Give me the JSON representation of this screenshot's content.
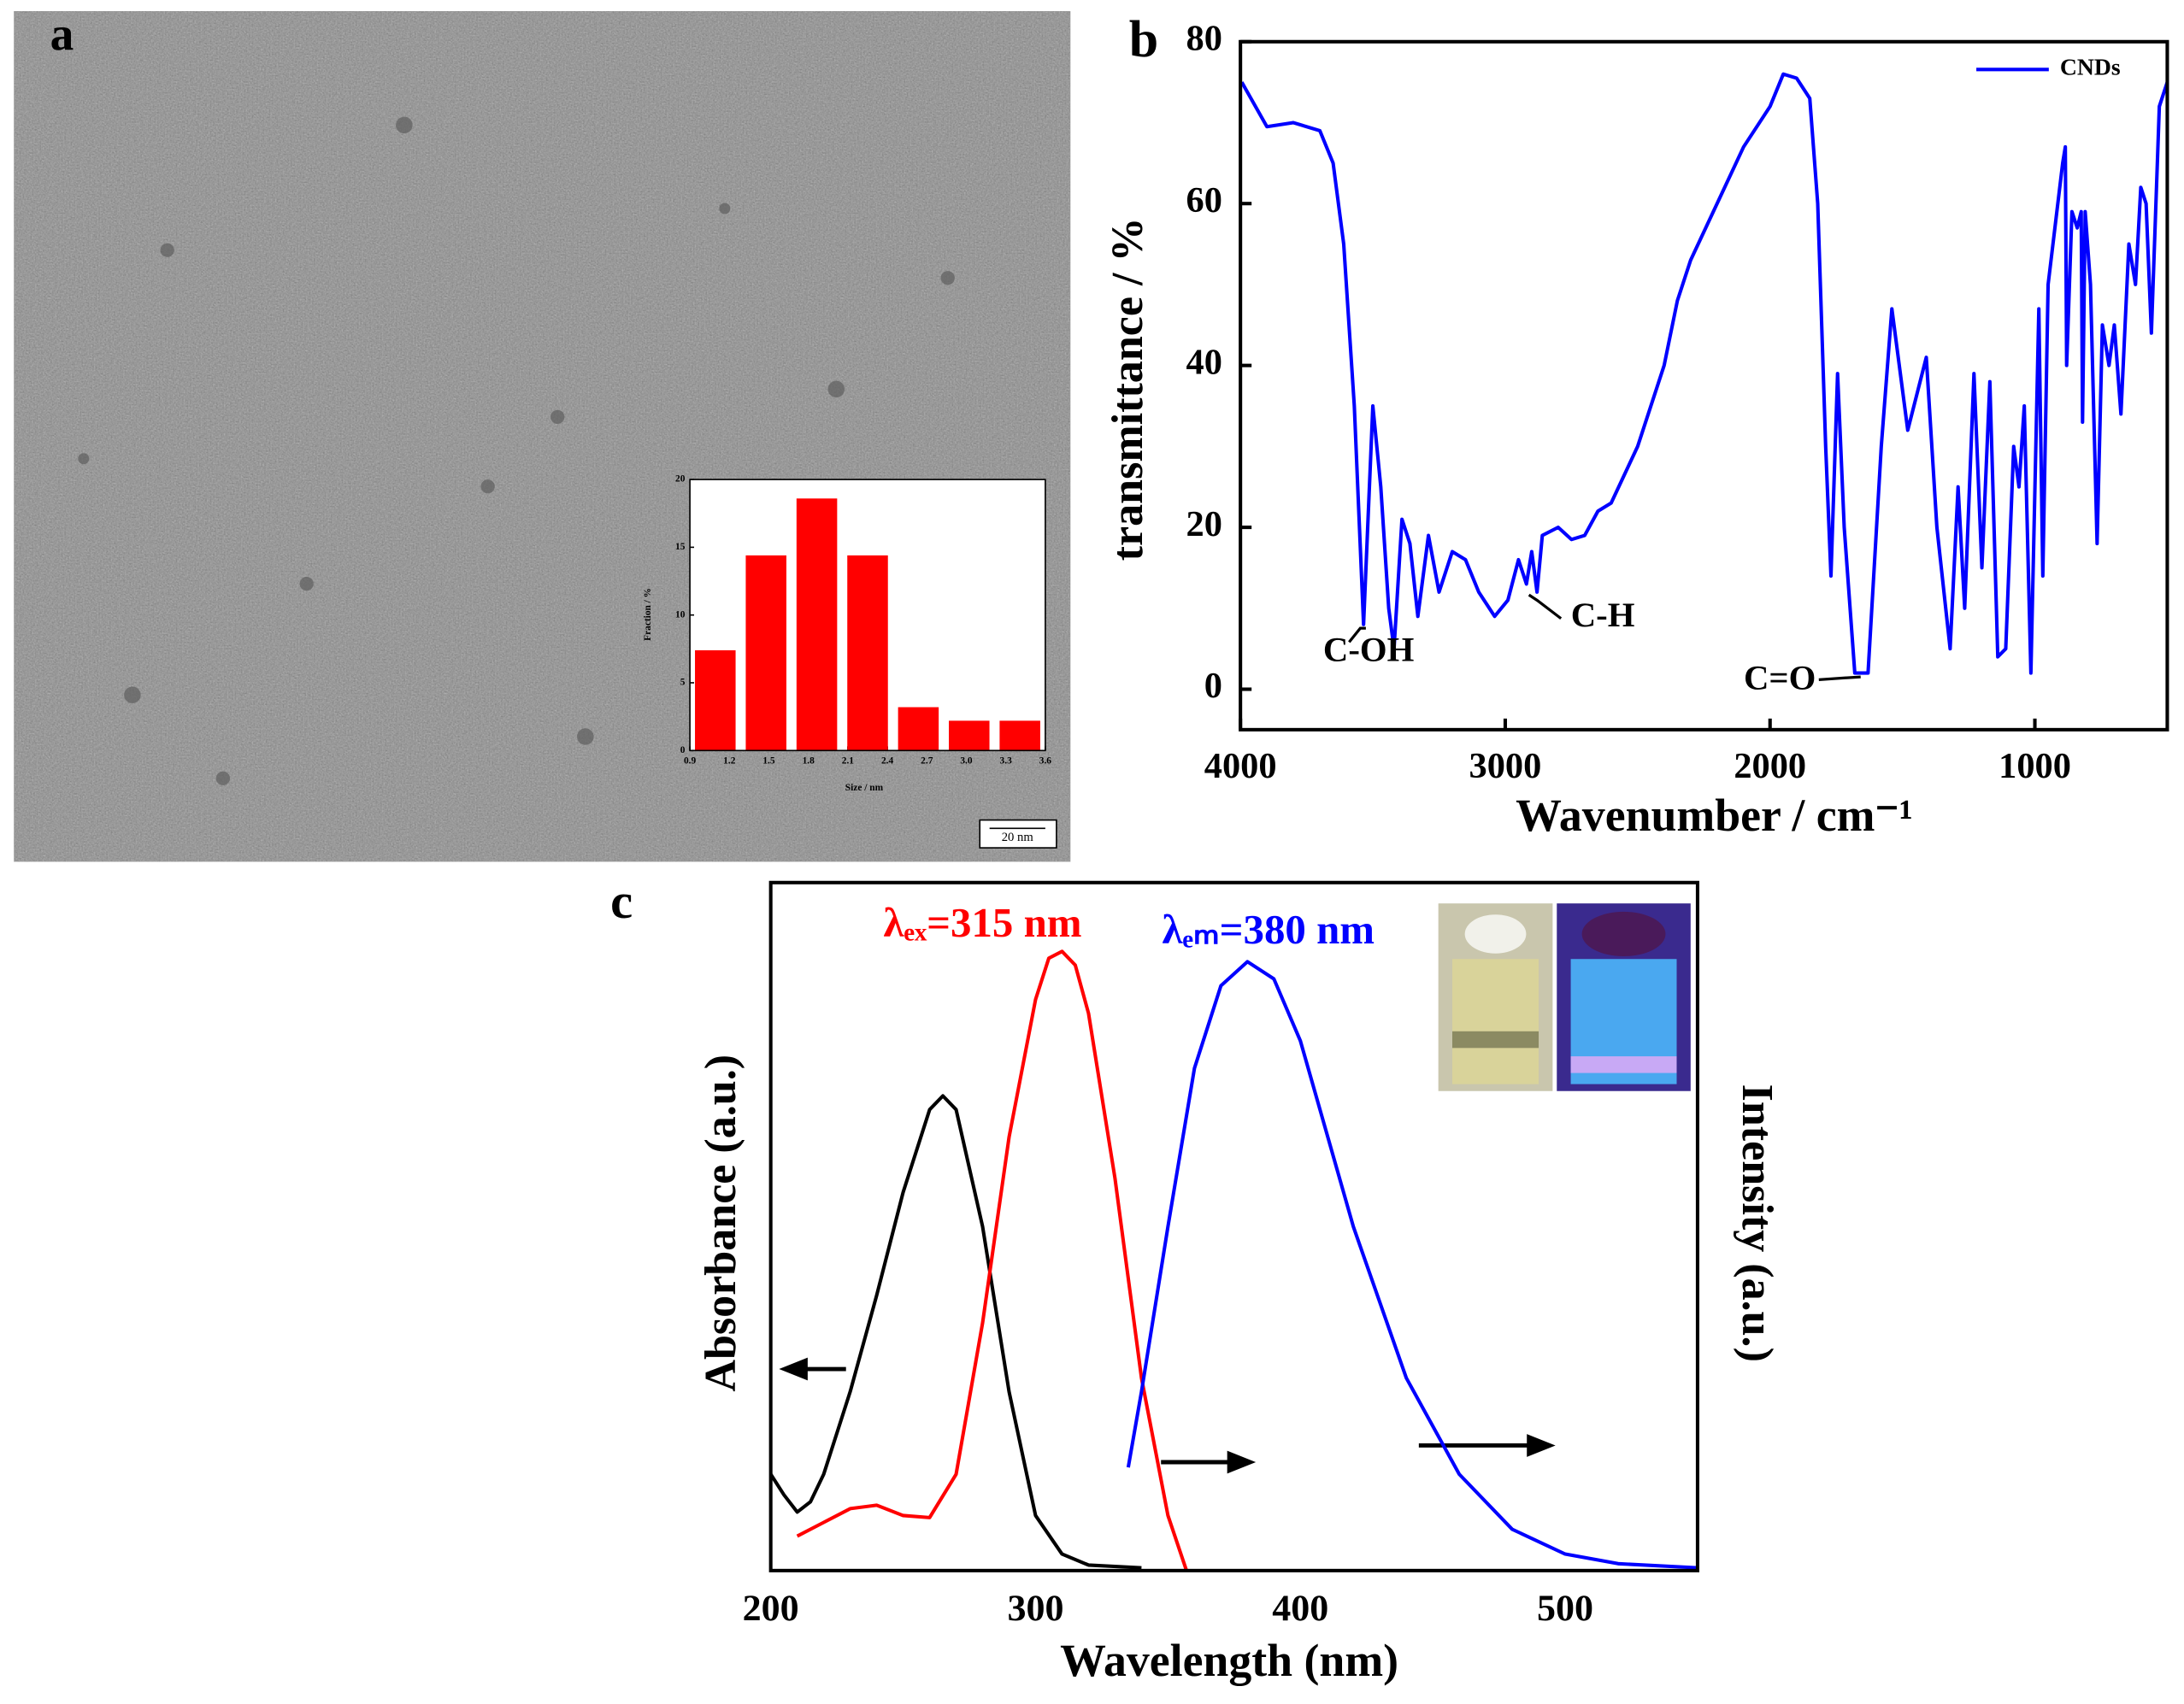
{
  "chart_data": [
    {
      "type": "bar",
      "panel_label": "a",
      "scale_bar": "20 nm",
      "x_label": "Size / nm",
      "y_label": "Fraction / %",
      "categories": [
        null,
        null,
        null,
        null,
        null,
        null,
        null
      ],
      "values": [
        7.4,
        14.4,
        18.6,
        14.4,
        3.2,
        2.2,
        2.2
      ],
      "color": "#ff0000",
      "xlim": [
        0.9,
        3.6
      ],
      "xticks": [
        0.9,
        1.2,
        1.5,
        1.8,
        2.1,
        2.4,
        2.7,
        {
          "value": 3,
          "label": "3.0"
        },
        3.3,
        3.6
      ],
      "ylim": [
        0,
        20
      ],
      "yticks": [
        0,
        5,
        10,
        15,
        20
      ]
    },
    {
      "type": "line",
      "panel_label": "b",
      "x_label": "Wavenumber / cm⁻¹",
      "y_label": "transmittance / %",
      "legend": "upper right",
      "annotations": [
        "C-OH",
        "C-H",
        "C=O"
      ],
      "xlim": [
        4000,
        500
      ],
      "xticks": [
        4000,
        3000,
        2000,
        1000
      ],
      "ylim": [
        -5,
        80
      ],
      "yticks": [
        0,
        20,
        40,
        60,
        80
      ],
      "x": [
        3995,
        3900,
        3800,
        3700,
        3650,
        3610,
        3570,
        3535,
        3500,
        3470,
        3440,
        3420,
        3390,
        3360,
        3330,
        3290,
        3250,
        3200,
        3150,
        3100,
        3040,
        2990,
        2950,
        2920,
        2900,
        2880,
        2860,
        2800,
        2750,
        2700,
        2650,
        2600,
        2500,
        2400,
        2350,
        2300,
        2200,
        2100,
        2000,
        1950,
        1900,
        1850,
        1820,
        1790,
        1770,
        1745,
        1720,
        1680,
        1630,
        1580,
        1540,
        1480,
        1410,
        1370,
        1320,
        1290,
        1265,
        1230,
        1200,
        1170,
        1140,
        1110,
        1080,
        1060,
        1040,
        1015,
        985,
        970,
        950,
        895,
        885,
        880,
        860,
        840,
        825,
        820,
        810,
        790,
        765,
        745,
        720,
        700,
        675,
        645,
        620,
        600,
        580,
        560,
        530,
        500
      ],
      "series": [
        {
          "name": "CNDs",
          "color": "#0000ff",
          "values": [
            75,
            69.5,
            70,
            69,
            65,
            55,
            35,
            8,
            35,
            25,
            10,
            5,
            21,
            18,
            9,
            19,
            12,
            17,
            16,
            12,
            9,
            11,
            16,
            13,
            17,
            12,
            19,
            20,
            18.5,
            19,
            22,
            23,
            30,
            40,
            48,
            53,
            60,
            67,
            72,
            76,
            75.5,
            73,
            60,
            30,
            14,
            39,
            20,
            2,
            2,
            30,
            47,
            32,
            41,
            20,
            5,
            25,
            10,
            39,
            15,
            38,
            4,
            5,
            30,
            25,
            35,
            2,
            47,
            14,
            50,
            65,
            67,
            40,
            59,
            57,
            59,
            33,
            59,
            50,
            18,
            45,
            40,
            45,
            34,
            55,
            50,
            62,
            60,
            44,
            72,
            75
          ]
        }
      ]
    },
    {
      "type": "line",
      "panel_label": "c",
      "x_label": "Wavelength (nm)",
      "y_label": "Absorbance (a.u.)",
      "y2_label": "Intensity (a.u.)",
      "annotations": [
        "λₑₓ=315 nm",
        "λₑₘ=380 nm"
      ],
      "xlim": [
        200,
        550
      ],
      "xticks": [
        200,
        300,
        400,
        500
      ],
      "ylim": [
        0,
        1
      ],
      "y2lim": [
        0,
        1
      ],
      "series": [
        {
          "color": "#000000",
          "x": [
            200,
            205,
            210,
            215,
            220,
            230,
            240,
            250,
            260,
            265,
            270,
            280,
            290,
            300,
            310,
            320,
            340
          ],
          "values": [
            0.14,
            0.11,
            0.085,
            0.1,
            0.14,
            0.26,
            0.4,
            0.55,
            0.67,
            0.69,
            0.67,
            0.5,
            0.26,
            0.08,
            0.024,
            0.008,
            0.004
          ]
        },
        {
          "color": "#ff0000",
          "axis": "y2",
          "x": [
            210,
            220,
            230,
            240,
            250,
            260,
            270,
            280,
            290,
            300,
            305,
            310,
            315,
            320,
            330,
            340,
            350,
            357
          ],
          "values": [
            0.05,
            0.07,
            0.09,
            0.095,
            0.08,
            0.077,
            0.14,
            0.36,
            0.63,
            0.83,
            0.89,
            0.9,
            0.88,
            0.81,
            0.57,
            0.28,
            0.08,
            0
          ]
        },
        {
          "color": "#0000ff",
          "axis": "y2",
          "x": [
            335,
            340,
            350,
            360,
            370,
            380,
            390,
            400,
            420,
            440,
            460,
            480,
            500,
            520,
            550
          ],
          "values": [
            0.15,
            0.26,
            0.5,
            0.73,
            0.85,
            0.885,
            0.86,
            0.77,
            0.5,
            0.28,
            0.14,
            0.06,
            0.024,
            0.01,
            0.004
          ]
        }
      ]
    }
  ]
}
